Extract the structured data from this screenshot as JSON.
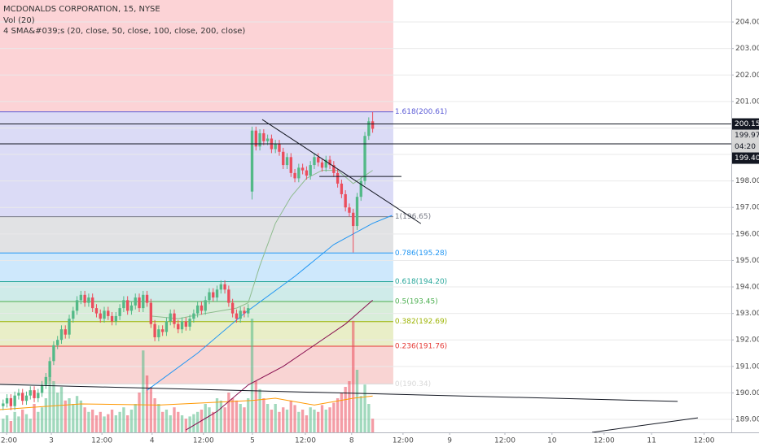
{
  "chart_data": {
    "type": "candlestick",
    "title": "MCDONALDS CORPORATION, 15, NYSE",
    "volume_label": "Vol (20)",
    "ma_label": "4 SMA&#039;s (20, close, 50, close, 100, close, 200, close)",
    "up_color": "#53b987",
    "down_color": "#eb4d5c",
    "grid": true,
    "xlim": [
      -0.8,
      187.2
    ],
    "xticks": [
      {
        "value": 0.9,
        "label": "12:00"
      },
      {
        "value": 12.4,
        "label": "3"
      },
      {
        "value": 25.4,
        "label": "12:00"
      },
      {
        "value": 38.3,
        "label": "4"
      },
      {
        "value": 51.5,
        "label": "12:00"
      },
      {
        "value": 64.1,
        "label": "5"
      },
      {
        "value": 77.7,
        "label": "12:00"
      },
      {
        "value": 89.6,
        "label": "8"
      },
      {
        "value": 102.8,
        "label": "12:00"
      },
      {
        "value": 114.8,
        "label": "9"
      },
      {
        "value": 129,
        "label": "12:00"
      },
      {
        "value": 141.1,
        "label": "10"
      },
      {
        "value": 154.5,
        "label": "12:00"
      },
      {
        "value": 166.7,
        "label": "11"
      },
      {
        "value": 180.2,
        "label": "12:00"
      }
    ],
    "ylim": [
      188.51,
      204.83
    ],
    "yticks": [
      {
        "value": 189,
        "label": "189.00"
      },
      {
        "value": 190,
        "label": "190.00"
      },
      {
        "value": 191,
        "label": "191.00"
      },
      {
        "value": 192,
        "label": "192.00"
      },
      {
        "value": 193,
        "label": "193.00"
      },
      {
        "value": 194,
        "label": "194.00"
      },
      {
        "value": 195,
        "label": "195.00"
      },
      {
        "value": 196,
        "label": "196.00"
      },
      {
        "value": 197,
        "label": "197.00"
      },
      {
        "value": 198,
        "label": "198.00"
      },
      {
        "value": 199,
        "label": "199.00"
      },
      {
        "value": 200,
        "label": "200.00"
      },
      {
        "value": 201,
        "label": "201.00"
      },
      {
        "value": 202,
        "label": "202.00"
      },
      {
        "value": 203,
        "label": "203.00"
      },
      {
        "value": 204,
        "label": "204.00"
      }
    ],
    "vlim": [
      0,
      100
    ],
    "candles": {
      "open": [
        189.5,
        189.6,
        189.8,
        189.5,
        189.9,
        190.0,
        189.7,
        189.9,
        190.1,
        189.8,
        190.0,
        190.3,
        190.6,
        191.2,
        191.8,
        192.0,
        192.4,
        192.2,
        192.8,
        193.1,
        193.5,
        193.7,
        193.4,
        193.6,
        193.2,
        193.0,
        192.8,
        193.1,
        192.9,
        192.7,
        192.9,
        193.2,
        193.5,
        193.1,
        193.3,
        193.6,
        193.2,
        193.7,
        193.4,
        192.6,
        192.1,
        192.4,
        192.3,
        192.7,
        193.0,
        192.6,
        192.4,
        192.7,
        192.5,
        192.8,
        193.0,
        193.3,
        193.1,
        193.5,
        193.8,
        193.6,
        193.9,
        194.1,
        193.9,
        193.4,
        193.0,
        192.8,
        193.1,
        193.0,
        197.6,
        199.9,
        199.3,
        199.8,
        199.5,
        199.6,
        199.2,
        199.4,
        199.1,
        198.6,
        198.9,
        198.3,
        198.1,
        198.5,
        198.4,
        198.2,
        198.6,
        198.9,
        198.7,
        198.5,
        198.8,
        198.6,
        198.3,
        197.9,
        197.5,
        197.0,
        196.8,
        196.3,
        197.4,
        198.0,
        199.7,
        200.25
      ],
      "high": [
        189.75,
        189.95,
        189.95,
        190.05,
        190.15,
        190.15,
        190.05,
        190.25,
        190.25,
        190.15,
        190.45,
        190.75,
        191.35,
        191.95,
        192.15,
        192.55,
        192.55,
        192.95,
        193.25,
        193.65,
        193.85,
        193.85,
        193.75,
        193.75,
        193.35,
        193.15,
        193.25,
        193.25,
        193.05,
        193.05,
        193.35,
        193.65,
        193.65,
        193.45,
        193.75,
        193.75,
        193.85,
        193.85,
        193.55,
        192.75,
        192.55,
        192.55,
        192.85,
        193.15,
        193.15,
        192.75,
        192.85,
        192.85,
        192.95,
        193.15,
        193.45,
        193.45,
        193.65,
        193.95,
        193.95,
        194.05,
        194.25,
        194.25,
        194.05,
        193.55,
        193.15,
        193.25,
        193.25,
        193.35,
        200.05,
        200.05,
        199.95,
        199.95,
        199.75,
        199.75,
        199.55,
        199.55,
        199.25,
        199.05,
        199.05,
        198.45,
        198.65,
        198.65,
        198.55,
        198.75,
        199.05,
        199.05,
        198.85,
        198.95,
        198.95,
        198.75,
        198.45,
        198.05,
        197.65,
        197.15,
        196.95,
        197.55,
        198.15,
        199.85,
        200.4,
        200.6
      ],
      "low": [
        189.35,
        189.45,
        189.35,
        189.35,
        189.75,
        189.55,
        189.55,
        189.75,
        189.65,
        189.65,
        189.85,
        190.15,
        190.45,
        191.05,
        191.65,
        191.85,
        192.05,
        192.05,
        192.65,
        192.95,
        193.35,
        193.25,
        193.25,
        193.05,
        192.85,
        192.65,
        192.65,
        192.75,
        192.55,
        192.55,
        192.75,
        193.05,
        192.95,
        192.95,
        193.15,
        193.05,
        193.05,
        193.25,
        192.45,
        191.95,
        191.95,
        192.15,
        192.15,
        192.55,
        192.45,
        192.25,
        192.25,
        192.35,
        192.35,
        192.65,
        192.85,
        192.95,
        192.95,
        193.35,
        193.45,
        193.45,
        193.75,
        193.75,
        193.25,
        192.85,
        192.65,
        192.65,
        192.85,
        192.85,
        197.3,
        199.15,
        199.15,
        199.35,
        199.35,
        199.05,
        199.05,
        198.95,
        198.45,
        198.45,
        198.15,
        197.95,
        197.95,
        198.25,
        198.05,
        198.05,
        198.45,
        198.55,
        198.35,
        198.35,
        198.45,
        198.15,
        197.75,
        197.35,
        196.85,
        196.65,
        195.3,
        196.15,
        197.25,
        197.85,
        199.55,
        199.82
      ],
      "close": [
        189.6,
        189.8,
        189.5,
        189.9,
        190.0,
        189.7,
        189.9,
        190.1,
        189.8,
        190.0,
        190.3,
        190.6,
        191.2,
        191.8,
        192.0,
        192.4,
        192.2,
        192.8,
        193.1,
        193.5,
        193.7,
        193.4,
        193.6,
        193.2,
        193.0,
        192.8,
        193.1,
        192.9,
        192.7,
        192.9,
        193.2,
        193.5,
        193.1,
        193.3,
        193.6,
        193.2,
        193.7,
        193.4,
        192.6,
        192.1,
        192.4,
        192.3,
        192.7,
        193.0,
        192.6,
        192.4,
        192.7,
        192.5,
        192.8,
        193.0,
        193.3,
        193.1,
        193.5,
        193.8,
        193.6,
        193.9,
        194.1,
        193.9,
        193.4,
        193.0,
        192.8,
        193.1,
        193.0,
        193.2,
        199.9,
        199.3,
        199.8,
        199.5,
        199.6,
        199.2,
        199.4,
        199.1,
        198.6,
        198.9,
        198.3,
        198.1,
        198.5,
        198.4,
        198.2,
        198.6,
        198.9,
        198.7,
        198.5,
        198.8,
        198.6,
        198.3,
        197.9,
        197.5,
        197.0,
        196.8,
        196.3,
        197.4,
        198.0,
        199.7,
        200.25,
        199.97
      ],
      "volume": [
        12,
        15,
        10,
        18,
        14,
        20,
        16,
        12,
        25,
        18,
        22,
        30,
        50,
        45,
        35,
        40,
        28,
        30,
        25,
        32,
        28,
        22,
        18,
        20,
        15,
        18,
        14,
        16,
        20,
        15,
        18,
        22,
        15,
        20,
        25,
        35,
        72,
        50,
        40,
        30,
        25,
        18,
        20,
        15,
        22,
        18,
        15,
        12,
        14,
        16,
        18,
        20,
        25,
        22,
        18,
        30,
        28,
        22,
        35,
        30,
        28,
        25,
        22,
        30,
        100,
        45,
        38,
        30,
        25,
        20,
        25,
        18,
        22,
        20,
        28,
        24,
        18,
        20,
        15,
        22,
        20,
        18,
        24,
        20,
        22,
        26,
        30,
        35,
        40,
        45,
        98,
        55,
        32,
        42,
        25,
        12
      ]
    },
    "volume_ma": {
      "color": "#ff9800",
      "x": [
        -0.8,
        20,
        40,
        64,
        70,
        80,
        90,
        95
      ],
      "values": [
        20,
        25,
        24,
        28,
        30,
        24,
        30,
        32
      ]
    },
    "moving_averages": [
      {
        "color": "#8fbc8f",
        "x": [
          38,
          45,
          52,
          60,
          63,
          66,
          70,
          74,
          78,
          82,
          86,
          90,
          95
        ],
        "values": [
          192.9,
          192.8,
          193.0,
          193.2,
          193.4,
          194.8,
          196.4,
          197.4,
          198.1,
          198.4,
          198.4,
          197.9,
          198.4
        ]
      },
      {
        "color": "#2196f3",
        "x": [
          37,
          50,
          62,
          75,
          85,
          95,
          100
        ],
        "values": [
          190.1,
          191.5,
          193.0,
          194.4,
          195.6,
          196.4,
          196.7
        ]
      },
      {
        "color": "#880e4f",
        "x": [
          47,
          55,
          63,
          72,
          80,
          88,
          95
        ],
        "values": [
          188.6,
          189.3,
          190.3,
          191.0,
          191.8,
          192.6,
          193.5
        ]
      }
    ],
    "fib": {
      "x_end": 100.3,
      "top_color": "#f23645",
      "levels": [
        {
          "label": "1.618(200.61)",
          "value": 200.61,
          "color": "#5b5bd6"
        },
        {
          "label": "1(196.65)",
          "value": 196.65,
          "color": "#787b86"
        },
        {
          "label": "0.786(195.28)",
          "value": 195.28,
          "color": "#2196f3"
        },
        {
          "label": "0.618(194.20)",
          "value": 194.2,
          "color": "#26a69a"
        },
        {
          "label": "0.5(193.45)",
          "value": 193.45,
          "color": "#4caf50"
        },
        {
          "label": "0.382(192.69)",
          "value": 192.69,
          "color": "#9cb300"
        },
        {
          "label": "0.236(191.76)",
          "value": 191.76,
          "color": "#e53935"
        },
        {
          "label": "0(190.34)",
          "value": 190.34,
          "color": "#d8d8d8"
        }
      ]
    },
    "trendlines": [
      {
        "color": "#131722",
        "x": [
          66.6,
          107.4
        ],
        "values": [
          200.32,
          196.39
        ]
      },
      {
        "color": "#131722",
        "x": [
          81.3,
          102.4
        ],
        "values": [
          198.17,
          198.17
        ]
      },
      {
        "color": "#131722",
        "x": [
          -0.8,
          173.4
        ],
        "values": [
          190.32,
          189.68
        ]
      },
      {
        "color": "#131722",
        "x": [
          151.4,
          178.6
        ],
        "values": [
          188.51,
          189.06
        ]
      }
    ],
    "price_tags": [
      {
        "label": "200.15",
        "value": 200.15,
        "bg": "#131722",
        "fg": "#ffffff",
        "line": true
      },
      {
        "label": "199.97",
        "value": 199.97,
        "bg": "#d6d6d6",
        "fg": "#131722",
        "line": false,
        "countdown": "04:20"
      },
      {
        "label": "199.40",
        "value": 199.4,
        "bg": "#131722",
        "fg": "#ffffff",
        "line": true
      }
    ]
  }
}
